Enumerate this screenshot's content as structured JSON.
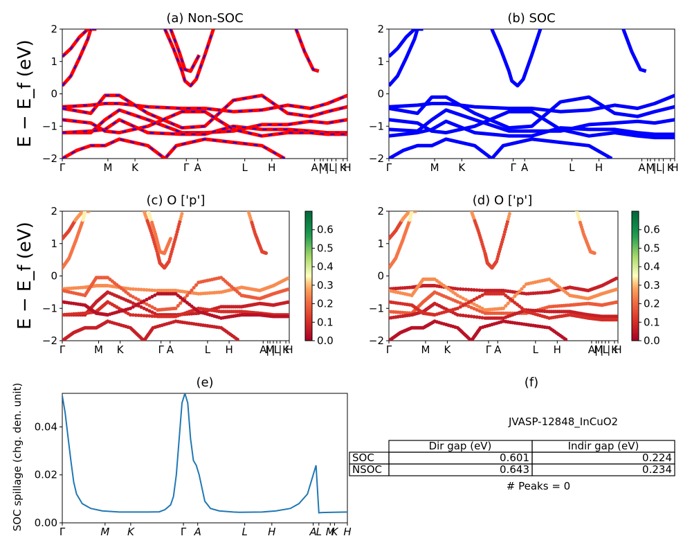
{
  "panels": {
    "a": {
      "title": "(a) Non-SOC"
    },
    "b": {
      "title": "(b) SOC"
    },
    "c": {
      "title": "(c)  O ['p']"
    },
    "d": {
      "title": "(d) O ['p']"
    },
    "e": {
      "title": "(e)"
    },
    "f": {
      "title": "(f)"
    }
  },
  "band_ylabel": "E − E_f (eV)",
  "band_yticks": [
    "2",
    "1",
    "0",
    "−1",
    "−2"
  ],
  "kpath_labels": [
    "Γ",
    "M",
    "K",
    "Γ",
    "A",
    "L",
    "H",
    "A",
    "|",
    "M",
    "|",
    "L",
    "|",
    "K",
    "H"
  ],
  "kpath_ticks_e": [
    "Γ",
    "M",
    "K",
    "Γ",
    "A",
    "L",
    "H",
    "A",
    "L",
    "M",
    "K",
    "H"
  ],
  "colorbar_ticks": [
    "0.6",
    "0.5",
    "0.4",
    "0.3",
    "0.2",
    "0.1",
    "0.0"
  ],
  "colors": {
    "nonsoc_line": "#ff0000",
    "soc_line": "#0000ff",
    "spillage_line": "#1f77b4"
  },
  "spillage": {
    "ylabel": "SOC spillage (chg. den. unit)",
    "yticks": [
      "0.00",
      "0.02",
      "0.04"
    ]
  },
  "summary": {
    "material": "JVASP-12848_InCuO2",
    "headers": [
      "",
      "Dir gap (eV)",
      "Indir gap (eV)"
    ],
    "rows": [
      {
        "label": "SOC",
        "dir": "0.601",
        "indir": "0.224"
      },
      {
        "label": "NSOC",
        "dir": "0.643",
        "indir": "0.234"
      }
    ],
    "peaks": "# Peaks = 0"
  },
  "chart_data": [
    {
      "type": "line",
      "title": "(a) Non-SOC",
      "ylabel": "E − E_f (eV)",
      "ylim": [
        -2,
        2
      ],
      "x_tick_labels": [
        "Γ",
        "M",
        "K",
        "Γ",
        "A",
        "L",
        "H",
        "A",
        "|",
        "M",
        "|",
        "L",
        "|",
        "K",
        "H"
      ],
      "series": [
        {
          "x": [
            0.0,
            0.03,
            0.06,
            0.09,
            0.12
          ],
          "y": [
            1.15,
            1.4,
            1.75,
            2.0,
            2.0
          ]
        },
        {
          "x": [
            0.0,
            0.03,
            0.06,
            0.09,
            0.1
          ],
          "y": [
            0.25,
            0.55,
            1.1,
            1.7,
            2.0
          ]
        },
        {
          "x": [
            0.36,
            0.39,
            0.42,
            0.43,
            0.45,
            0.47,
            0.5,
            0.53
          ],
          "y": [
            2.0,
            1.4,
            0.7,
            0.4,
            0.25,
            0.45,
            1.2,
            2.0
          ]
        },
        {
          "x": [
            0.38,
            0.41,
            0.43,
            0.45,
            0.48
          ],
          "y": [
            2.0,
            1.3,
            0.75,
            0.7,
            1.2
          ]
        },
        {
          "x": [
            0.82,
            0.85,
            0.88,
            0.9
          ],
          "y": [
            2.0,
            1.3,
            0.75,
            0.7
          ]
        },
        {
          "x": [
            0.0,
            0.1,
            0.15,
            0.2,
            0.3,
            0.42,
            0.5,
            0.6,
            0.7,
            0.79,
            0.87,
            0.93,
            1.0
          ],
          "y": [
            -0.4,
            -0.35,
            -0.3,
            -0.3,
            -0.4,
            -0.45,
            -0.45,
            -0.55,
            -0.5,
            -0.35,
            -0.45,
            -0.3,
            -0.05
          ]
        },
        {
          "x": [
            0.0,
            0.1,
            0.15,
            0.2,
            0.3,
            0.42,
            0.5,
            0.6,
            0.7,
            0.79,
            0.87,
            0.93,
            1.0
          ],
          "y": [
            -0.45,
            -0.6,
            -0.05,
            -0.05,
            -0.6,
            -1.05,
            -1.0,
            -0.2,
            -0.05,
            -0.6,
            -0.7,
            -0.55,
            -0.4
          ]
        },
        {
          "x": [
            0.0,
            0.1,
            0.15,
            0.2,
            0.3,
            0.42,
            0.5,
            0.6,
            0.7,
            0.79,
            0.87,
            0.93,
            1.0
          ],
          "y": [
            -1.2,
            -1.2,
            -0.8,
            -0.5,
            -0.8,
            -1.2,
            -1.2,
            -1.15,
            -0.95,
            -0.95,
            -0.85,
            -0.9,
            -0.8
          ]
        },
        {
          "x": [
            0.0,
            0.1,
            0.15,
            0.2,
            0.3,
            0.42,
            0.5,
            0.6,
            0.7,
            0.79,
            0.87,
            0.93,
            1.0
          ],
          "y": [
            -1.2,
            -1.15,
            -1.1,
            -0.8,
            -1.2,
            -1.25,
            -1.25,
            -1.0,
            -1.1,
            -1.1,
            -1.15,
            -1.2,
            -1.2
          ]
        },
        {
          "x": [
            0.0,
            0.1,
            0.15,
            0.2,
            0.3,
            0.42,
            0.5,
            0.6,
            0.7,
            0.79,
            0.87,
            0.93,
            1.0
          ],
          "y": [
            -0.8,
            -0.9,
            -1.15,
            -1.2,
            -1.0,
            -0.55,
            -0.55,
            -1.1,
            -1.3,
            -1.2,
            -1.2,
            -1.25,
            -1.25
          ]
        },
        {
          "x": [
            0.0,
            0.05,
            0.1,
            0.15,
            0.2,
            0.3,
            0.36,
            0.4,
            0.5,
            0.6,
            0.7,
            0.78
          ],
          "y": [
            -2.0,
            -1.75,
            -1.6,
            -1.6,
            -1.4,
            -1.6,
            -2.0,
            -1.6,
            -1.4,
            -1.5,
            -1.6,
            -2.0
          ]
        }
      ]
    },
    {
      "type": "line",
      "title": "(b) SOC",
      "ylim": [
        -2,
        2
      ],
      "x_tick_labels": [
        "Γ",
        "M",
        "K",
        "Γ",
        "A",
        "L",
        "H",
        "A",
        "|",
        "M",
        "|",
        "L",
        "|",
        "K",
        "H"
      ],
      "series": [
        {
          "x": [
            0.0,
            0.03,
            0.06,
            0.09,
            0.12
          ],
          "y": [
            1.15,
            1.4,
            1.75,
            2.0,
            2.0
          ]
        },
        {
          "x": [
            0.0,
            0.03,
            0.06,
            0.09,
            0.1
          ],
          "y": [
            0.25,
            0.55,
            1.1,
            1.7,
            2.0
          ]
        },
        {
          "x": [
            0.36,
            0.39,
            0.42,
            0.43,
            0.45,
            0.47,
            0.5,
            0.53
          ],
          "y": [
            2.0,
            1.4,
            0.7,
            0.4,
            0.25,
            0.45,
            1.2,
            2.0
          ]
        },
        {
          "x": [
            0.82,
            0.85,
            0.88,
            0.9
          ],
          "y": [
            2.0,
            1.3,
            0.75,
            0.7
          ]
        },
        {
          "x": [
            0.0,
            0.1,
            0.15,
            0.2,
            0.3,
            0.42,
            0.5,
            0.6,
            0.7,
            0.79,
            0.87,
            0.93,
            1.0
          ],
          "y": [
            -0.4,
            -0.35,
            -0.3,
            -0.3,
            -0.4,
            -0.45,
            -0.45,
            -0.55,
            -0.5,
            -0.35,
            -0.45,
            -0.3,
            -0.05
          ]
        },
        {
          "x": [
            0.0,
            0.1,
            0.15,
            0.2,
            0.3,
            0.42,
            0.5,
            0.6,
            0.7,
            0.79,
            0.87,
            0.93,
            1.0
          ],
          "y": [
            -0.45,
            -0.6,
            -0.1,
            -0.1,
            -0.6,
            -1.05,
            -1.0,
            -0.25,
            -0.1,
            -0.6,
            -0.7,
            -0.55,
            -0.4
          ]
        },
        {
          "x": [
            0.0,
            0.1,
            0.15,
            0.2,
            0.3,
            0.42,
            0.5,
            0.6,
            0.7,
            0.79,
            0.87,
            0.93,
            1.0
          ],
          "y": [
            -1.1,
            -1.15,
            -0.8,
            -0.5,
            -0.8,
            -1.15,
            -1.15,
            -1.15,
            -0.95,
            -0.9,
            -0.85,
            -0.9,
            -0.8
          ]
        },
        {
          "x": [
            0.0,
            0.1,
            0.15,
            0.2,
            0.3,
            0.42,
            0.5,
            0.6,
            0.7,
            0.79,
            0.87,
            0.93,
            1.0
          ],
          "y": [
            -1.3,
            -1.2,
            -1.1,
            -0.85,
            -1.2,
            -1.3,
            -1.3,
            -1.05,
            -1.1,
            -1.1,
            -1.2,
            -1.25,
            -1.25
          ]
        },
        {
          "x": [
            0.0,
            0.1,
            0.15,
            0.2,
            0.3,
            0.42,
            0.5,
            0.6,
            0.7,
            0.79,
            0.87,
            0.93,
            1.0
          ],
          "y": [
            -0.8,
            -0.9,
            -1.15,
            -1.2,
            -1.0,
            -0.55,
            -0.55,
            -1.1,
            -1.3,
            -1.2,
            -1.3,
            -1.35,
            -1.35
          ]
        },
        {
          "x": [
            0.0,
            0.05,
            0.1,
            0.15,
            0.2,
            0.3,
            0.36,
            0.4,
            0.5,
            0.6,
            0.7,
            0.78
          ],
          "y": [
            -2.0,
            -1.75,
            -1.6,
            -1.6,
            -1.4,
            -1.6,
            -2.0,
            -1.6,
            -1.4,
            -1.5,
            -1.6,
            -2.0
          ]
        }
      ]
    },
    {
      "type": "scatter",
      "title": "(c)  O ['p']",
      "ylabel": "E − E_f (eV)",
      "ylim": [
        -2,
        2
      ],
      "colorbar_range": [
        0.0,
        0.7
      ]
    },
    {
      "type": "scatter",
      "title": "(d) O ['p']",
      "ylim": [
        -2,
        2
      ],
      "colorbar_range": [
        0.0,
        0.7
      ]
    },
    {
      "type": "line",
      "title": "(e)",
      "ylabel": "SOC spillage (chg. den. unit)",
      "ylim": [
        0.0,
        0.054
      ],
      "x_tick_labels": [
        "Γ",
        "M",
        "K",
        "Γ",
        "A",
        "L",
        "H",
        "A",
        "L",
        "M",
        "K",
        "H"
      ],
      "x": [
        0.0,
        0.01,
        0.02,
        0.03,
        0.04,
        0.05,
        0.07,
        0.1,
        0.14,
        0.2,
        0.3,
        0.34,
        0.36,
        0.38,
        0.39,
        0.4,
        0.41,
        0.42,
        0.43,
        0.44,
        0.45,
        0.46,
        0.47,
        0.48,
        0.5,
        0.52,
        0.55,
        0.6,
        0.62,
        0.7,
        0.75,
        0.8,
        0.83,
        0.86,
        0.88,
        0.89,
        0.9,
        0.91,
        0.95,
        1.0
      ],
      "y": [
        0.053,
        0.046,
        0.036,
        0.026,
        0.017,
        0.012,
        0.008,
        0.006,
        0.005,
        0.0045,
        0.0045,
        0.0046,
        0.0055,
        0.0075,
        0.011,
        0.02,
        0.035,
        0.05,
        0.054,
        0.05,
        0.035,
        0.026,
        0.024,
        0.02,
        0.009,
        0.006,
        0.005,
        0.0045,
        0.0044,
        0.0045,
        0.005,
        0.006,
        0.008,
        0.012,
        0.02,
        0.024,
        0.0042,
        0.0043,
        0.0044,
        0.0045
      ]
    }
  ]
}
